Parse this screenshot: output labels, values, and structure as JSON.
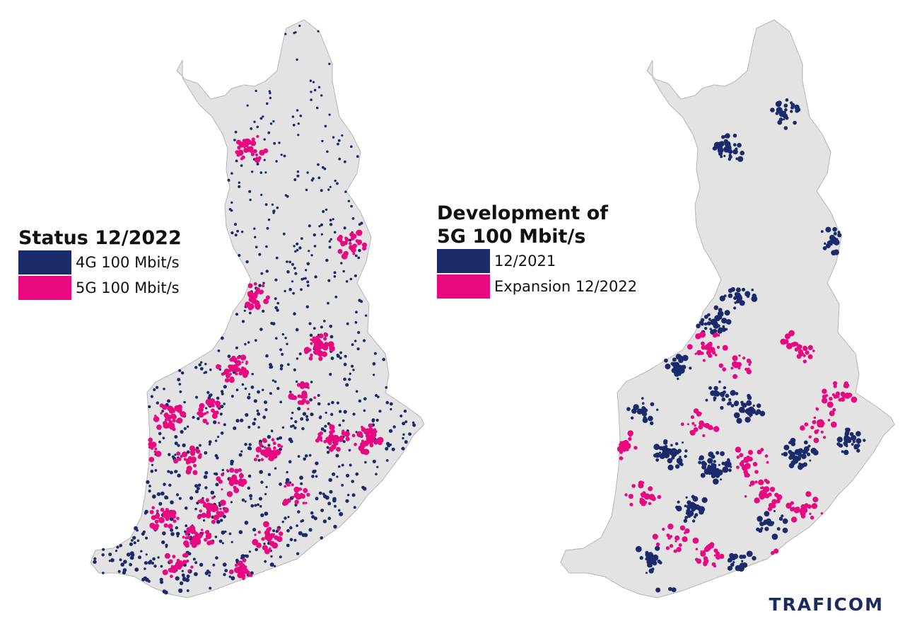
{
  "colors": {
    "land": "#e3e3e3",
    "border": "#b5b5b5",
    "coverage_4g": "#1b2a6b",
    "coverage_5g": "#e8087f"
  },
  "left_map": {
    "legend": {
      "title": "Status 12/2022",
      "items": [
        {
          "label": "4G 100 Mbit/s",
          "color": "#1b2a6b"
        },
        {
          "label": "5G 100 Mbit/s",
          "color": "#e8087f"
        }
      ]
    }
  },
  "right_map": {
    "legend": {
      "title_line1": "Development of",
      "title_line2": "5G 100 Mbit/s",
      "items": [
        {
          "label": "12/2021",
          "color": "#1b2a6b"
        },
        {
          "label": "Expansion 12/2022",
          "color": "#e8087f"
        }
      ]
    }
  },
  "logo": {
    "text": "TRAFICOM"
  }
}
